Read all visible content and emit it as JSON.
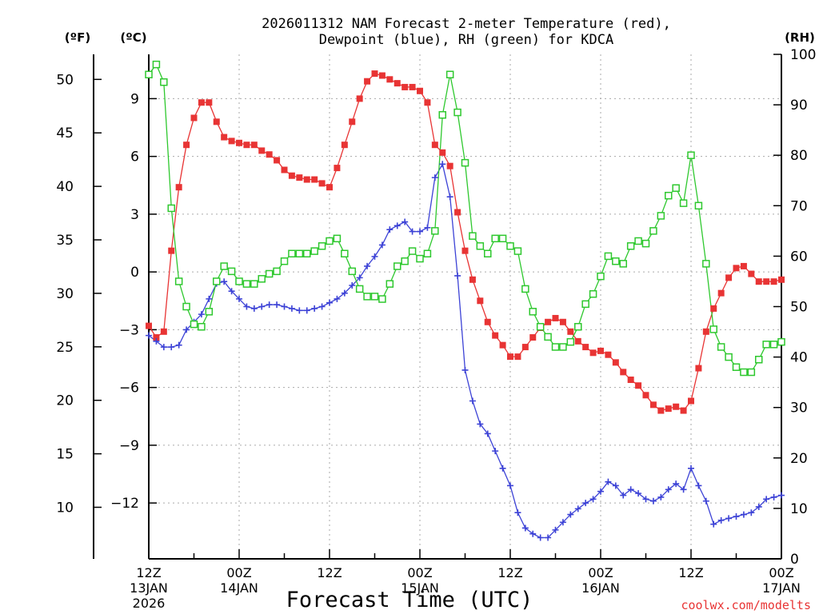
{
  "chart_data": {
    "type": "line",
    "title_line1": "2026011312 NAM Forecast 2-meter Temperature (red),",
    "title_line2": "Dewpoint (blue), RH (green) for KDCA",
    "xlabel": "Forecast Time (UTC)",
    "credit": "coolwx.com/modelts",
    "unit_f": "(ºF)",
    "unit_c": "(ºC)",
    "unit_rh": "(RH)",
    "x_ticks": [
      {
        "hour": 0,
        "l1": "12Z",
        "l2": "13JAN",
        "l3": "2026"
      },
      {
        "hour": 12,
        "l1": "00Z",
        "l2": "14JAN",
        "l3": ""
      },
      {
        "hour": 24,
        "l1": "12Z",
        "l2": "",
        "l3": ""
      },
      {
        "hour": 36,
        "l1": "00Z",
        "l2": "15JAN",
        "l3": ""
      },
      {
        "hour": 48,
        "l1": "12Z",
        "l2": "",
        "l3": ""
      },
      {
        "hour": 60,
        "l1": "00Z",
        "l2": "16JAN",
        "l3": ""
      },
      {
        "hour": 72,
        "l1": "12Z",
        "l2": "",
        "l3": ""
      },
      {
        "hour": 84,
        "l1": "00Z",
        "l2": "17JAN",
        "l3": ""
      }
    ],
    "x_range_hours": [
      0,
      84
    ],
    "y_left_c_ticks": [
      "9",
      "6",
      "3",
      "0",
      "−3",
      "−6",
      "−9",
      "−12"
    ],
    "y_left_c_values": [
      9,
      6,
      3,
      0,
      -3,
      -6,
      -9,
      -12
    ],
    "y_left_f_ticks": [
      "50",
      "45",
      "40",
      "35",
      "30",
      "25",
      "20",
      "15",
      "10"
    ],
    "y_left_f_values": [
      50,
      45,
      40,
      35,
      30,
      25,
      20,
      15,
      10
    ],
    "y_c_range": [
      -14.9,
      11.3
    ],
    "y_right_rh_ticks": [
      "100",
      "90",
      "80",
      "70",
      "60",
      "50",
      "40",
      "30",
      "20",
      "10",
      "0"
    ],
    "y_right_rh_values": [
      100,
      90,
      80,
      70,
      60,
      50,
      40,
      30,
      20,
      10,
      0
    ],
    "y_rh_range": [
      0,
      100
    ],
    "grid": true,
    "series": [
      {
        "name": "Temperature",
        "color": "#e83434",
        "marker": "filled-square",
        "axis": "celsius",
        "values": [
          [
            0,
            -2.8
          ],
          [
            1,
            -3.4
          ],
          [
            2,
            -3.1
          ],
          [
            3,
            1.1
          ],
          [
            4,
            4.4
          ],
          [
            5,
            6.6
          ],
          [
            6,
            8.0
          ],
          [
            7,
            8.8
          ],
          [
            8,
            8.8
          ],
          [
            9,
            7.8
          ],
          [
            10,
            7.0
          ],
          [
            11,
            6.8
          ],
          [
            12,
            6.7
          ],
          [
            13,
            6.6
          ],
          [
            14,
            6.6
          ],
          [
            15,
            6.3
          ],
          [
            16,
            6.1
          ],
          [
            17,
            5.8
          ],
          [
            18,
            5.3
          ],
          [
            19,
            5.0
          ],
          [
            20,
            4.9
          ],
          [
            21,
            4.8
          ],
          [
            22,
            4.8
          ],
          [
            23,
            4.6
          ],
          [
            24,
            4.4
          ],
          [
            25,
            5.4
          ],
          [
            26,
            6.6
          ],
          [
            27,
            7.8
          ],
          [
            28,
            9.0
          ],
          [
            29,
            9.9
          ],
          [
            30,
            10.3
          ],
          [
            31,
            10.2
          ],
          [
            32,
            10.0
          ],
          [
            33,
            9.8
          ],
          [
            34,
            9.6
          ],
          [
            35,
            9.6
          ],
          [
            36,
            9.4
          ],
          [
            37,
            8.8
          ],
          [
            38,
            6.6
          ],
          [
            39,
            6.2
          ],
          [
            40,
            5.5
          ],
          [
            41,
            3.1
          ],
          [
            42,
            1.1
          ],
          [
            43,
            -0.4
          ],
          [
            44,
            -1.5
          ],
          [
            45,
            -2.6
          ],
          [
            46,
            -3.3
          ],
          [
            47,
            -3.8
          ],
          [
            48,
            -4.4
          ],
          [
            49,
            -4.4
          ],
          [
            50,
            -3.9
          ],
          [
            51,
            -3.4
          ],
          [
            52,
            -2.9
          ],
          [
            53,
            -2.6
          ],
          [
            54,
            -2.4
          ],
          [
            55,
            -2.6
          ],
          [
            56,
            -3.1
          ],
          [
            57,
            -3.6
          ],
          [
            58,
            -3.9
          ],
          [
            59,
            -4.2
          ],
          [
            60,
            -4.1
          ],
          [
            61,
            -4.3
          ],
          [
            62,
            -4.7
          ],
          [
            63,
            -5.2
          ],
          [
            64,
            -5.6
          ],
          [
            65,
            -5.9
          ],
          [
            66,
            -6.4
          ],
          [
            67,
            -6.9
          ],
          [
            68,
            -7.2
          ],
          [
            69,
            -7.1
          ],
          [
            70,
            -7.0
          ],
          [
            71,
            -7.2
          ],
          [
            72,
            -6.7
          ],
          [
            73,
            -5.0
          ],
          [
            74,
            -3.1
          ],
          [
            75,
            -1.9
          ],
          [
            76,
            -1.1
          ],
          [
            77,
            -0.3
          ],
          [
            78,
            0.2
          ],
          [
            79,
            0.3
          ],
          [
            80,
            -0.1
          ],
          [
            81,
            -0.5
          ],
          [
            82,
            -0.5
          ],
          [
            83,
            -0.5
          ],
          [
            84,
            -0.4
          ]
        ]
      },
      {
        "name": "Dewpoint",
        "color": "#3c42d6",
        "marker": "plus",
        "axis": "celsius",
        "values": [
          [
            0,
            -3.3
          ],
          [
            1,
            -3.6
          ],
          [
            2,
            -3.9
          ],
          [
            3,
            -3.9
          ],
          [
            4,
            -3.8
          ],
          [
            5,
            -3.0
          ],
          [
            6,
            -2.6
          ],
          [
            7,
            -2.2
          ],
          [
            8,
            -1.4
          ],
          [
            9,
            -0.6
          ],
          [
            10,
            -0.5
          ],
          [
            11,
            -1.0
          ],
          [
            12,
            -1.4
          ],
          [
            13,
            -1.8
          ],
          [
            14,
            -1.9
          ],
          [
            15,
            -1.8
          ],
          [
            16,
            -1.7
          ],
          [
            17,
            -1.7
          ],
          [
            18,
            -1.8
          ],
          [
            19,
            -1.9
          ],
          [
            20,
            -2.0
          ],
          [
            21,
            -2.0
          ],
          [
            22,
            -1.9
          ],
          [
            23,
            -1.8
          ],
          [
            24,
            -1.6
          ],
          [
            25,
            -1.4
          ],
          [
            26,
            -1.1
          ],
          [
            27,
            -0.7
          ],
          [
            28,
            -0.3
          ],
          [
            29,
            0.3
          ],
          [
            30,
            0.8
          ],
          [
            31,
            1.4
          ],
          [
            32,
            2.2
          ],
          [
            33,
            2.4
          ],
          [
            34,
            2.6
          ],
          [
            35,
            2.1
          ],
          [
            36,
            2.1
          ],
          [
            37,
            2.3
          ],
          [
            38,
            4.9
          ],
          [
            39,
            5.6
          ],
          [
            40,
            3.9
          ],
          [
            41,
            -0.2
          ],
          [
            42,
            -5.1
          ],
          [
            43,
            -6.7
          ],
          [
            44,
            -7.9
          ],
          [
            45,
            -8.4
          ],
          [
            46,
            -9.3
          ],
          [
            47,
            -10.2
          ],
          [
            48,
            -11.1
          ],
          [
            49,
            -12.5
          ],
          [
            50,
            -13.3
          ],
          [
            51,
            -13.6
          ],
          [
            52,
            -13.8
          ],
          [
            53,
            -13.8
          ],
          [
            54,
            -13.4
          ],
          [
            55,
            -13.0
          ],
          [
            56,
            -12.6
          ],
          [
            57,
            -12.3
          ],
          [
            58,
            -12.0
          ],
          [
            59,
            -11.8
          ],
          [
            60,
            -11.4
          ],
          [
            61,
            -10.9
          ],
          [
            62,
            -11.1
          ],
          [
            63,
            -11.6
          ],
          [
            64,
            -11.3
          ],
          [
            65,
            -11.5
          ],
          [
            66,
            -11.8
          ],
          [
            67,
            -11.9
          ],
          [
            68,
            -11.7
          ],
          [
            69,
            -11.3
          ],
          [
            70,
            -11.0
          ],
          [
            71,
            -11.3
          ],
          [
            72,
            -10.2
          ],
          [
            73,
            -11.1
          ],
          [
            74,
            -11.9
          ],
          [
            75,
            -13.1
          ],
          [
            76,
            -12.9
          ],
          [
            77,
            -12.8
          ],
          [
            78,
            -12.7
          ],
          [
            79,
            -12.6
          ],
          [
            80,
            -12.5
          ],
          [
            81,
            -12.2
          ],
          [
            82,
            -11.8
          ],
          [
            83,
            -11.7
          ],
          [
            84,
            -11.6
          ]
        ]
      },
      {
        "name": "RH",
        "color": "#2ec82e",
        "marker": "open-square",
        "axis": "rh",
        "values": [
          [
            0,
            96
          ],
          [
            1,
            98
          ],
          [
            2,
            94.5
          ],
          [
            3,
            69.5
          ],
          [
            4,
            55
          ],
          [
            5,
            50
          ],
          [
            6,
            46.5
          ],
          [
            7,
            46
          ],
          [
            8,
            49
          ],
          [
            9,
            55
          ],
          [
            10,
            58
          ],
          [
            11,
            57
          ],
          [
            12,
            55
          ],
          [
            13,
            54.5
          ],
          [
            14,
            54.5
          ],
          [
            15,
            55.5
          ],
          [
            16,
            56.5
          ],
          [
            17,
            57
          ],
          [
            18,
            59
          ],
          [
            19,
            60.5
          ],
          [
            20,
            60.5
          ],
          [
            21,
            60.5
          ],
          [
            22,
            61
          ],
          [
            23,
            62
          ],
          [
            24,
            63
          ],
          [
            25,
            63.5
          ],
          [
            26,
            60.5
          ],
          [
            27,
            57
          ],
          [
            28,
            53.5
          ],
          [
            29,
            52
          ],
          [
            30,
            52
          ],
          [
            31,
            51.5
          ],
          [
            32,
            54.5
          ],
          [
            33,
            58
          ],
          [
            34,
            59
          ],
          [
            35,
            61
          ],
          [
            36,
            59.5
          ],
          [
            37,
            60.5
          ],
          [
            38,
            65
          ],
          [
            39,
            88
          ],
          [
            40,
            96
          ],
          [
            41,
            88.5
          ],
          [
            42,
            78.5
          ],
          [
            43,
            64
          ],
          [
            44,
            62
          ],
          [
            45,
            60.5
          ],
          [
            46,
            63.5
          ],
          [
            47,
            63.5
          ],
          [
            48,
            62
          ],
          [
            49,
            61
          ],
          [
            50,
            53.5
          ],
          [
            51,
            49
          ],
          [
            52,
            46
          ],
          [
            53,
            44
          ],
          [
            54,
            42
          ],
          [
            55,
            42
          ],
          [
            56,
            43
          ],
          [
            57,
            46
          ],
          [
            58,
            50.5
          ],
          [
            59,
            52.5
          ],
          [
            60,
            56
          ],
          [
            61,
            60
          ],
          [
            62,
            59
          ],
          [
            63,
            58.5
          ],
          [
            64,
            62
          ],
          [
            65,
            63
          ],
          [
            66,
            62.5
          ],
          [
            67,
            65
          ],
          [
            68,
            68
          ],
          [
            69,
            72
          ],
          [
            70,
            73.5
          ],
          [
            71,
            70.5
          ],
          [
            72,
            80
          ],
          [
            73,
            70
          ],
          [
            74,
            58.5
          ],
          [
            75,
            45.5
          ],
          [
            76,
            42
          ],
          [
            77,
            40
          ],
          [
            78,
            38
          ],
          [
            79,
            37
          ],
          [
            80,
            37
          ],
          [
            81,
            39.5
          ],
          [
            82,
            42.5
          ],
          [
            83,
            42.5
          ],
          [
            84,
            43
          ]
        ]
      }
    ]
  }
}
